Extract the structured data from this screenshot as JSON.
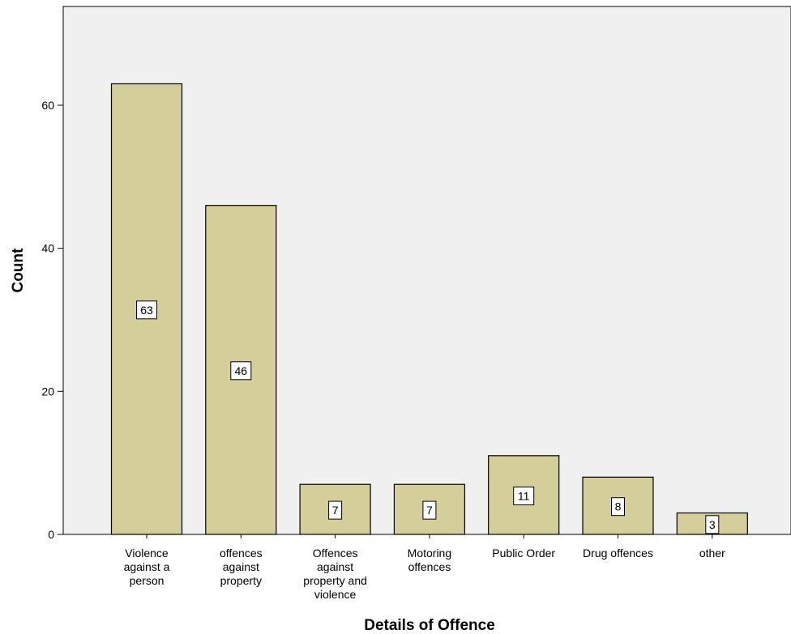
{
  "chart_data": {
    "type": "bar",
    "categories": [
      [
        "Violence",
        "against a",
        "person"
      ],
      [
        "offences",
        "against",
        "property"
      ],
      [
        "Offences",
        "against",
        "property and",
        "violence"
      ],
      [
        "Motoring",
        "offences"
      ],
      [
        "Public Order"
      ],
      [
        "Drug offences"
      ],
      [
        "other"
      ]
    ],
    "values": [
      63,
      46,
      7,
      7,
      11,
      8,
      3
    ],
    "data_labels": [
      "63",
      "46",
      "7",
      "7",
      "11",
      "8",
      "3"
    ],
    "xlabel": "Details of Offence",
    "ylabel": "Count",
    "ylim": [
      0,
      74
    ],
    "yticks": [
      0,
      20,
      40,
      60
    ],
    "ytick_labels": [
      "0",
      "20",
      "40",
      "60"
    ],
    "grid": false,
    "colors": {
      "bar_fill": "#d3ce9a",
      "bar_stroke": "#000000",
      "plot_background": "#f0f0f0"
    }
  }
}
